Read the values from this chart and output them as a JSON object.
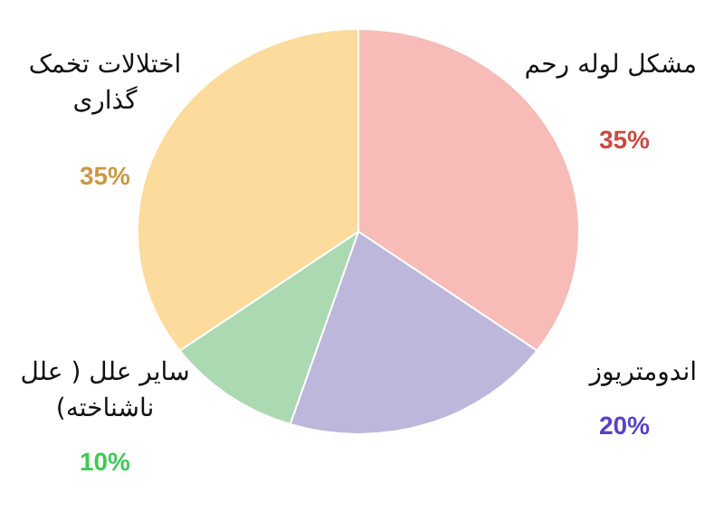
{
  "chart_data": {
    "type": "pie",
    "categories": [
      "مشکل لوله رحم",
      "اندومتریوز",
      "سایر علل ( علل ناشناخته)",
      "اختلالات تخمک گذاری"
    ],
    "values": [
      35,
      20,
      10,
      35
    ],
    "colors": [
      "#f7bcb8",
      "#bdb7db",
      "#abd9b2",
      "#fcdb9c"
    ],
    "value_labels": [
      "35%",
      "20%",
      "10%",
      "35%"
    ]
  }
}
